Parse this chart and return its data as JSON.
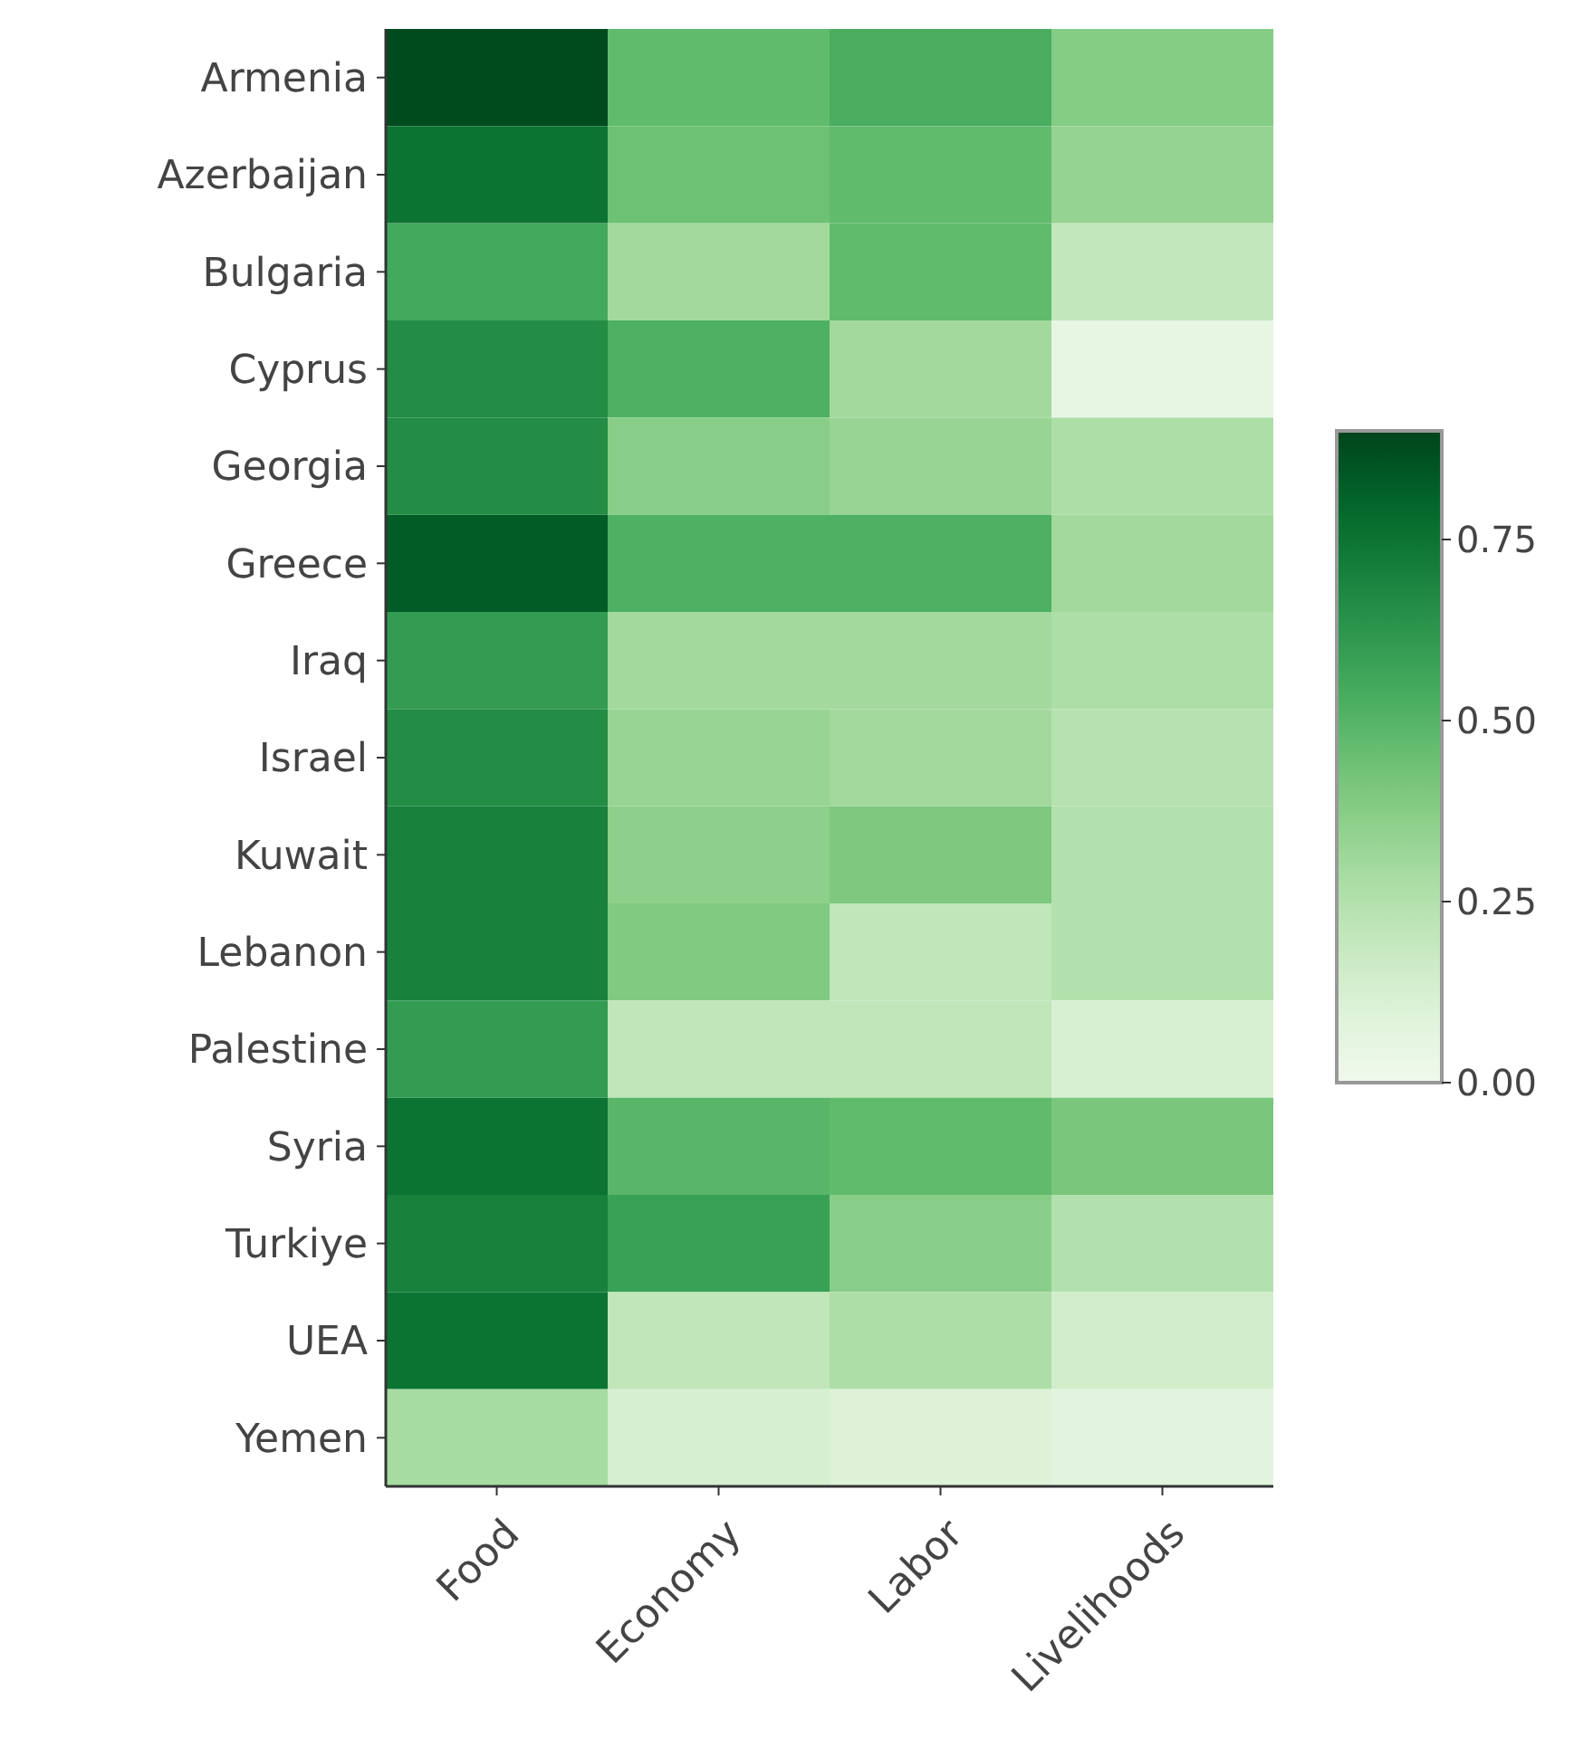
{
  "chart_data": {
    "type": "heatmap",
    "categories": [
      "Food",
      "Economy",
      "Labor",
      "Livelihoods"
    ],
    "y_categories": [
      "Armenia",
      "Azerbaijan",
      "Bulgaria",
      "Cyprus",
      "Georgia",
      "Greece",
      "Iraq",
      "Israel",
      "Kuwait",
      "Lebanon",
      "Palestine",
      "Syria",
      "Turkiye",
      "UEA",
      "Yemen"
    ],
    "cells": [
      [
        0.88,
        0.47,
        0.53,
        0.38
      ],
      [
        0.75,
        0.44,
        0.47,
        0.34
      ],
      [
        0.55,
        0.3,
        0.47,
        0.2
      ],
      [
        0.66,
        0.52,
        0.3,
        0.05
      ],
      [
        0.66,
        0.37,
        0.33,
        0.27
      ],
      [
        0.83,
        0.52,
        0.52,
        0.3
      ],
      [
        0.6,
        0.3,
        0.3,
        0.27
      ],
      [
        0.66,
        0.33,
        0.3,
        0.24
      ],
      [
        0.7,
        0.36,
        0.4,
        0.25
      ],
      [
        0.7,
        0.39,
        0.21,
        0.25
      ],
      [
        0.6,
        0.21,
        0.21,
        0.12
      ],
      [
        0.75,
        0.49,
        0.47,
        0.41
      ],
      [
        0.7,
        0.58,
        0.37,
        0.25
      ],
      [
        0.75,
        0.21,
        0.27,
        0.15
      ],
      [
        0.29,
        0.13,
        0.1,
        0.07
      ]
    ],
    "clim": [
      0,
      0.9
    ],
    "cticks": [
      {
        "value": 0,
        "label": "0.00"
      },
      {
        "value": 0.25,
        "label": "0.25"
      },
      {
        "value": 0.5,
        "label": "0.50"
      },
      {
        "value": 0.75,
        "label": "0.75"
      }
    ]
  }
}
